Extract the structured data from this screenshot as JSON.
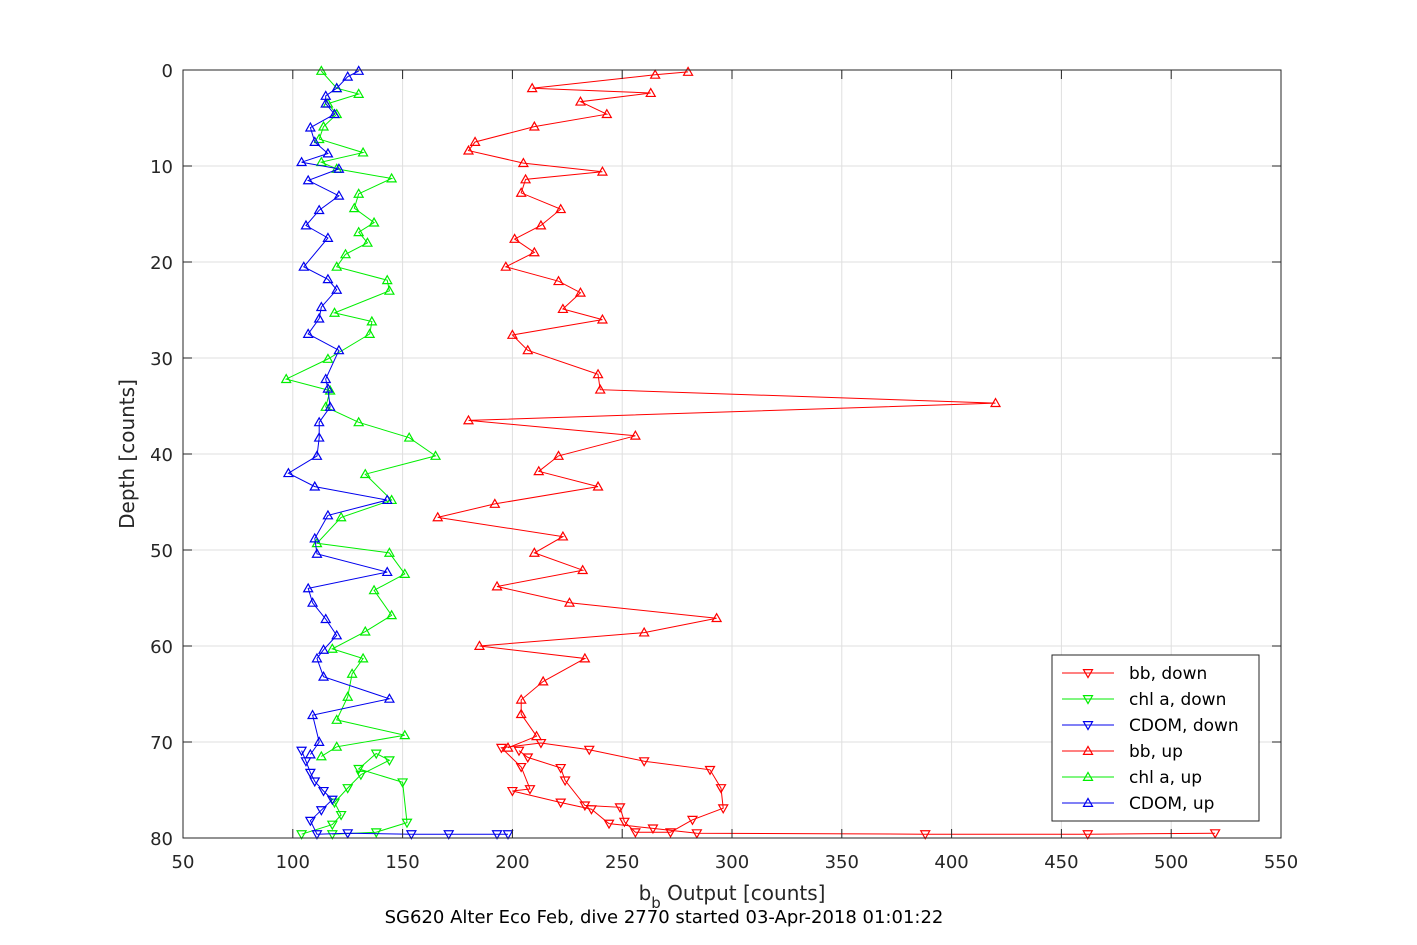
{
  "chart_data": {
    "type": "line",
    "xlabel_main": "b",
    "xlabel_sub": "b",
    "xlabel_rest": " Output [counts]",
    "ylabel": "Depth [counts]",
    "caption": "SG620 Alter Eco Feb, dive 2770 started 03-Apr-2018 01:01:22",
    "xlim": [
      50,
      550
    ],
    "ylim": [
      0,
      80
    ],
    "y_reversed": true,
    "grid": true,
    "legend_position": "bottom-right",
    "xticks": [
      50,
      100,
      150,
      200,
      250,
      300,
      350,
      400,
      450,
      500,
      550
    ],
    "yticks": [
      0,
      10,
      20,
      30,
      40,
      50,
      60,
      70,
      80
    ],
    "series": [
      {
        "name": "bb, down",
        "color": "#ff0000",
        "marker": "triangle-down",
        "points": [
          [
            203,
            70.9
          ],
          [
            207,
            71.6
          ],
          [
            222,
            72.7
          ],
          [
            224,
            74.0
          ],
          [
            233,
            76.6
          ],
          [
            249,
            76.8
          ],
          [
            251,
            78.3
          ],
          [
            256,
            79.4
          ],
          [
            272,
            79.4
          ],
          [
            282,
            78.1
          ],
          [
            296,
            76.9
          ],
          [
            295,
            74.8
          ],
          [
            290,
            72.9
          ],
          [
            260,
            72.0
          ],
          [
            235,
            70.8
          ],
          [
            213,
            70.1
          ],
          [
            195,
            70.6
          ],
          [
            204,
            72.6
          ],
          [
            208,
            74.9
          ],
          [
            200,
            75.1
          ],
          [
            222,
            76.3
          ],
          [
            236,
            77.0
          ],
          [
            244,
            78.5
          ],
          [
            264,
            79.0
          ],
          [
            284,
            79.5
          ],
          [
            388,
            79.6
          ],
          [
            462,
            79.6
          ],
          [
            520,
            79.5
          ]
        ]
      },
      {
        "name": "chl a, down",
        "color": "#00ee00",
        "marker": "triangle-down",
        "points": [
          [
            104,
            79.6
          ],
          [
            118,
            78.6
          ],
          [
            122,
            77.6
          ],
          [
            119,
            76.3
          ],
          [
            125,
            74.8
          ],
          [
            131,
            73.4
          ],
          [
            144,
            71.9
          ],
          [
            138,
            71.2
          ],
          [
            130,
            72.8
          ],
          [
            150,
            74.2
          ],
          [
            152,
            78.4
          ],
          [
            138,
            79.4
          ],
          [
            118,
            79.6
          ]
        ]
      },
      {
        "name": "CDOM, down",
        "color": "#0000ee",
        "marker": "triangle-down",
        "points": [
          [
            104,
            70.9
          ],
          [
            106,
            72.0
          ],
          [
            108,
            73.2
          ],
          [
            110,
            74.1
          ],
          [
            114,
            75.1
          ],
          [
            118,
            76.0
          ],
          [
            113,
            77.1
          ],
          [
            108,
            78.2
          ],
          [
            111,
            79.6
          ],
          [
            125,
            79.5
          ],
          [
            154,
            79.6
          ],
          [
            171,
            79.6
          ],
          [
            193,
            79.6
          ],
          [
            198,
            79.6
          ]
        ]
      },
      {
        "name": "bb, up",
        "color": "#ff0000",
        "marker": "triangle-up",
        "points": [
          [
            280,
            0.2
          ],
          [
            265,
            0.5
          ],
          [
            209,
            1.9
          ],
          [
            263,
            2.4
          ],
          [
            231,
            3.3
          ],
          [
            243,
            4.6
          ],
          [
            210,
            5.9
          ],
          [
            183,
            7.5
          ],
          [
            180,
            8.4
          ],
          [
            205,
            9.7
          ],
          [
            241,
            10.6
          ],
          [
            206,
            11.4
          ],
          [
            204,
            12.8
          ],
          [
            222,
            14.5
          ],
          [
            213,
            16.2
          ],
          [
            201,
            17.6
          ],
          [
            210,
            19.0
          ],
          [
            197,
            20.5
          ],
          [
            221,
            22.0
          ],
          [
            231,
            23.2
          ],
          [
            223,
            24.9
          ],
          [
            241,
            26.0
          ],
          [
            200,
            27.6
          ],
          [
            207,
            29.2
          ],
          [
            239,
            31.7
          ],
          [
            240,
            33.3
          ],
          [
            420,
            34.7
          ],
          [
            180,
            36.5
          ],
          [
            256,
            38.1
          ],
          [
            221,
            40.2
          ],
          [
            212,
            41.8
          ],
          [
            239,
            43.4
          ],
          [
            192,
            45.2
          ],
          [
            166,
            46.6
          ],
          [
            223,
            48.6
          ],
          [
            210,
            50.3
          ],
          [
            232,
            52.1
          ],
          [
            193,
            53.8
          ],
          [
            226,
            55.5
          ],
          [
            293,
            57.1
          ],
          [
            260,
            58.6
          ],
          [
            185,
            60.0
          ],
          [
            233,
            61.3
          ],
          [
            214,
            63.7
          ],
          [
            204,
            65.6
          ],
          [
            204,
            67.1
          ],
          [
            211,
            69.4
          ],
          [
            198,
            70.6
          ]
        ]
      },
      {
        "name": "chl a, up",
        "color": "#00ee00",
        "marker": "triangle-up",
        "points": [
          [
            113,
            0.1
          ],
          [
            120,
            1.9
          ],
          [
            130,
            2.5
          ],
          [
            116,
            3.5
          ],
          [
            120,
            4.6
          ],
          [
            114,
            5.9
          ],
          [
            112,
            7.2
          ],
          [
            132,
            8.6
          ],
          [
            113,
            9.6
          ],
          [
            120,
            10.3
          ],
          [
            145,
            11.3
          ],
          [
            130,
            12.9
          ],
          [
            128,
            14.4
          ],
          [
            137,
            15.9
          ],
          [
            130,
            16.9
          ],
          [
            134,
            18.0
          ],
          [
            124,
            19.2
          ],
          [
            120,
            20.5
          ],
          [
            143,
            21.9
          ],
          [
            144,
            23.0
          ],
          [
            119,
            25.3
          ],
          [
            136,
            26.2
          ],
          [
            135,
            27.5
          ],
          [
            116,
            30.1
          ],
          [
            97,
            32.2
          ],
          [
            117,
            33.4
          ],
          [
            115,
            35.1
          ],
          [
            130,
            36.7
          ],
          [
            153,
            38.3
          ],
          [
            165,
            40.2
          ],
          [
            133,
            42.1
          ],
          [
            145,
            44.8
          ],
          [
            122,
            46.6
          ],
          [
            111,
            49.3
          ],
          [
            144,
            50.3
          ],
          [
            151,
            52.5
          ],
          [
            137,
            54.2
          ],
          [
            145,
            56.8
          ],
          [
            133,
            58.5
          ],
          [
            118,
            60.3
          ],
          [
            132,
            61.3
          ],
          [
            127,
            62.9
          ],
          [
            125,
            65.3
          ],
          [
            120,
            67.7
          ],
          [
            151,
            69.3
          ],
          [
            120,
            70.5
          ],
          [
            113,
            71.5
          ]
        ]
      },
      {
        "name": "CDOM, up",
        "color": "#0000ee",
        "marker": "triangle-up",
        "points": [
          [
            130,
            0.1
          ],
          [
            125,
            0.7
          ],
          [
            120,
            1.9
          ],
          [
            115,
            2.7
          ],
          [
            115,
            3.5
          ],
          [
            119,
            4.6
          ],
          [
            108,
            6.0
          ],
          [
            110,
            7.5
          ],
          [
            116,
            8.7
          ],
          [
            104,
            9.6
          ],
          [
            121,
            10.3
          ],
          [
            107,
            11.5
          ],
          [
            121,
            13.1
          ],
          [
            112,
            14.6
          ],
          [
            106,
            16.2
          ],
          [
            116,
            17.5
          ],
          [
            105,
            20.5
          ],
          [
            116,
            21.8
          ],
          [
            120,
            22.9
          ],
          [
            113,
            24.7
          ],
          [
            112,
            25.9
          ],
          [
            107,
            27.5
          ],
          [
            121,
            29.2
          ],
          [
            115,
            32.2
          ],
          [
            116,
            33.2
          ],
          [
            117,
            35.1
          ],
          [
            112,
            36.7
          ],
          [
            112,
            38.3
          ],
          [
            111,
            40.2
          ],
          [
            98,
            42.0
          ],
          [
            110,
            43.4
          ],
          [
            143,
            44.8
          ],
          [
            116,
            46.4
          ],
          [
            110,
            48.8
          ],
          [
            111,
            50.4
          ],
          [
            143,
            52.3
          ],
          [
            107,
            54.0
          ],
          [
            109,
            55.5
          ],
          [
            115,
            57.2
          ],
          [
            120,
            58.9
          ],
          [
            114,
            60.4
          ],
          [
            111,
            61.3
          ],
          [
            114,
            63.2
          ],
          [
            144,
            65.5
          ],
          [
            109,
            67.2
          ],
          [
            112,
            70.0
          ],
          [
            108,
            71.3
          ]
        ]
      }
    ]
  }
}
